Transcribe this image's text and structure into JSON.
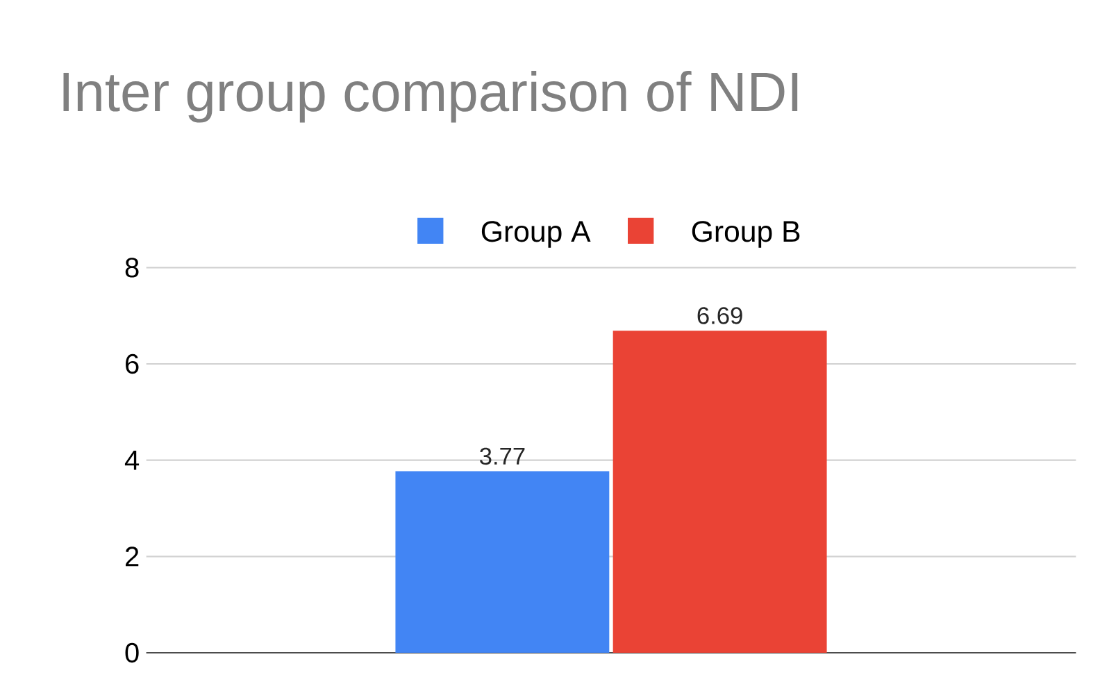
{
  "chart_data": {
    "type": "bar",
    "title": "Inter group comparison of NDI",
    "categories": [
      null
    ],
    "series": [
      {
        "name": "Group A",
        "color": "#4285f4",
        "values": [
          3.77
        ]
      },
      {
        "name": "Group B",
        "color": "#ea4335",
        "values": [
          6.69
        ]
      }
    ],
    "ylim": [
      0,
      8
    ],
    "yticks": [
      0,
      2,
      4,
      6,
      8
    ],
    "grid": "y",
    "legend": "top",
    "data_labels": true
  }
}
